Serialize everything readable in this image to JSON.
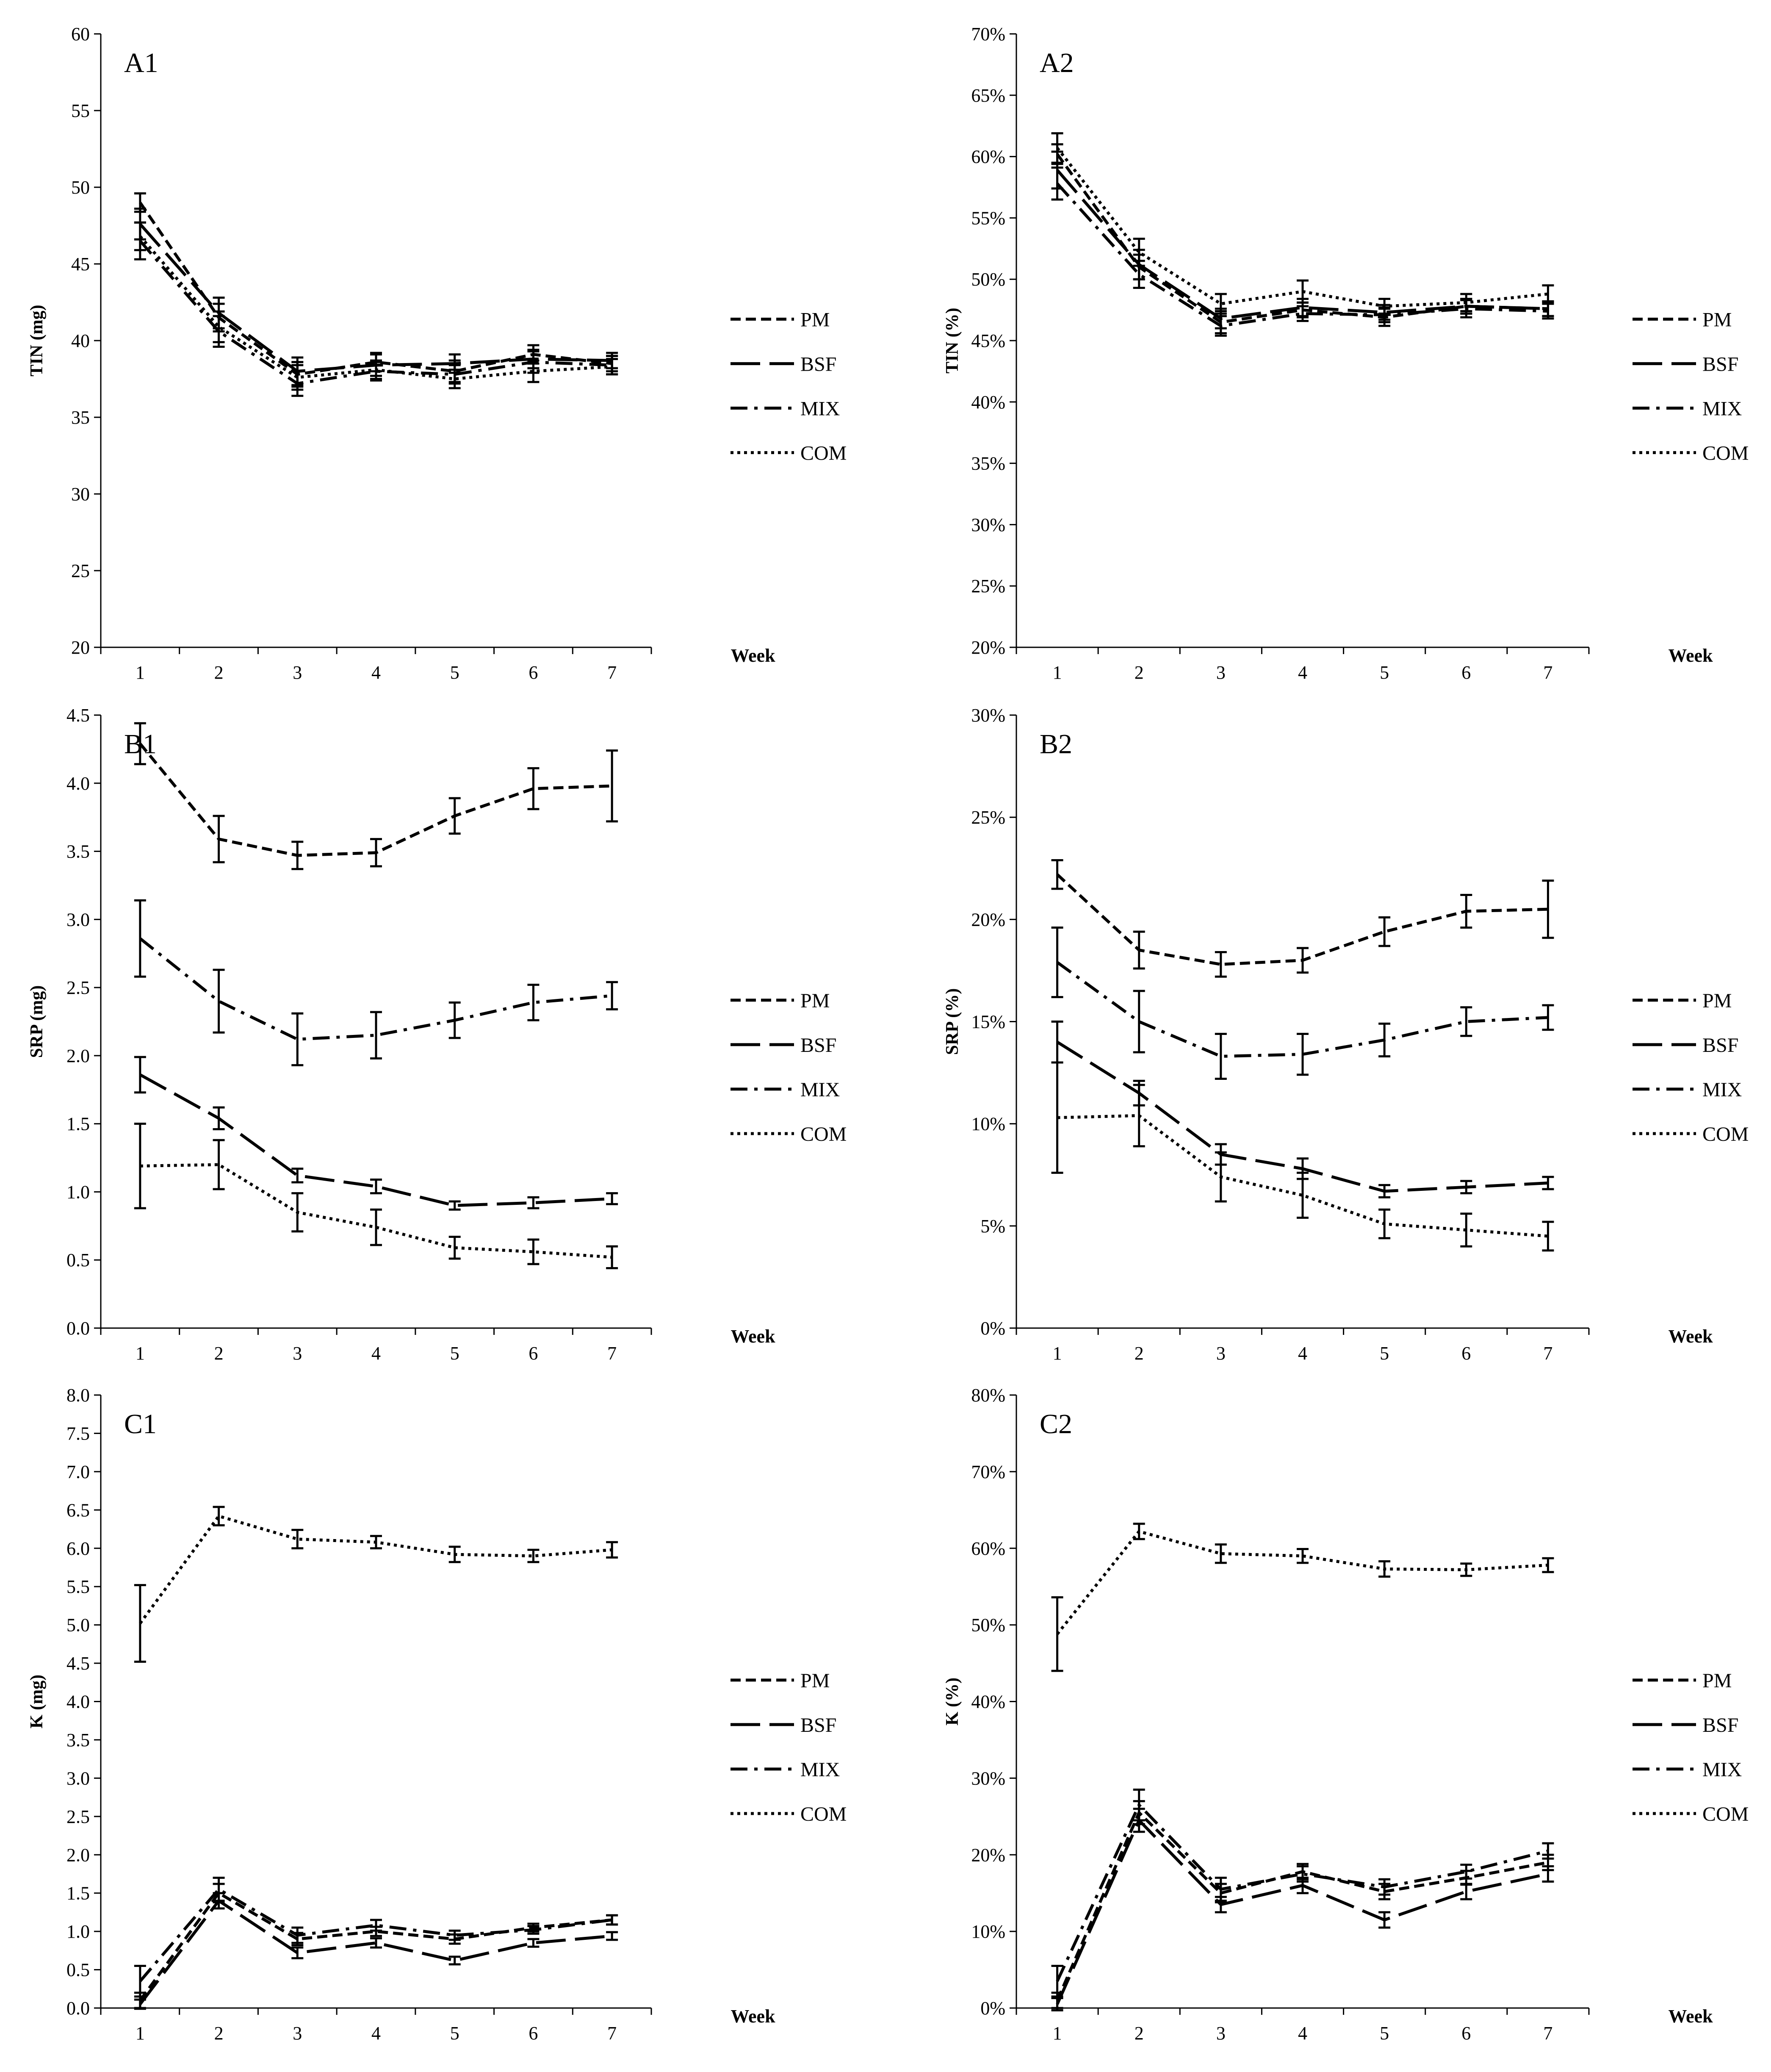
{
  "chart_data": [
    {
      "panel": "A1",
      "type": "line",
      "ylabel": "TIN (mg)",
      "xlabel": "Week",
      "x": [
        1,
        2,
        3,
        4,
        5,
        6,
        7
      ],
      "ylim": [
        20,
        60
      ],
      "yticks": [
        "20",
        "25",
        "30",
        "35",
        "40",
        "45",
        "50",
        "55",
        "60"
      ],
      "series": [
        {
          "name": "PM",
          "values": [
            49.0,
            41.5,
            37.8,
            38.6,
            38.0,
            39.1,
            38.5
          ],
          "errors": [
            0.6,
            0.9,
            0.8,
            0.6,
            0.7,
            0.6,
            0.5
          ]
        },
        {
          "name": "BSF",
          "values": [
            47.6,
            41.8,
            38.0,
            38.4,
            38.5,
            38.8,
            38.7
          ],
          "errors": [
            1.0,
            1.0,
            0.9,
            0.7,
            0.6,
            0.6,
            0.5
          ]
        },
        {
          "name": "MIX",
          "values": [
            46.5,
            40.6,
            37.2,
            38.0,
            37.8,
            38.6,
            38.4
          ],
          "errors": [
            1.2,
            1.0,
            0.8,
            0.6,
            0.6,
            0.7,
            0.6
          ]
        },
        {
          "name": "COM",
          "values": [
            46.8,
            40.9,
            37.6,
            38.1,
            37.5,
            38.0,
            38.3
          ],
          "errors": [
            0.9,
            1.0,
            0.8,
            0.6,
            0.6,
            0.7,
            0.5
          ]
        }
      ]
    },
    {
      "panel": "A2",
      "type": "line",
      "ylabel": "TIN (%)",
      "xlabel": "Week",
      "x": [
        1,
        2,
        3,
        4,
        5,
        6,
        7
      ],
      "ylim": [
        20,
        70
      ],
      "yticks": [
        "20%",
        "25%",
        "30%",
        "35%",
        "40%",
        "45%",
        "50%",
        "55%",
        "60%",
        "65%",
        "70%"
      ],
      "series": [
        {
          "name": "PM",
          "values": [
            60.2,
            51.0,
            46.5,
            47.5,
            46.9,
            47.8,
            47.6
          ],
          "errors": [
            0.8,
            1.0,
            0.9,
            0.6,
            0.7,
            0.6,
            0.6
          ]
        },
        {
          "name": "BSF",
          "values": [
            58.9,
            51.2,
            46.8,
            47.7,
            47.3,
            47.8,
            47.6
          ],
          "errors": [
            1.5,
            1.2,
            0.8,
            0.7,
            0.6,
            0.6,
            0.6
          ]
        },
        {
          "name": "MIX",
          "values": [
            57.8,
            50.4,
            46.2,
            47.2,
            47.1,
            47.6,
            47.4
          ],
          "errors": [
            1.3,
            1.1,
            0.8,
            0.6,
            0.6,
            0.7,
            0.6
          ]
        },
        {
          "name": "COM",
          "values": [
            60.7,
            52.2,
            48.0,
            49.0,
            47.8,
            48.1,
            48.8
          ],
          "errors": [
            1.2,
            1.1,
            0.8,
            0.9,
            0.6,
            0.7,
            0.7
          ]
        }
      ]
    },
    {
      "panel": "B1",
      "type": "line",
      "ylabel": "SRP (mg)",
      "xlabel": "Week",
      "x": [
        1,
        2,
        3,
        4,
        5,
        6,
        7
      ],
      "ylim": [
        0,
        4.5
      ],
      "yticks": [
        "0.0",
        "0.5",
        "1.0",
        "1.5",
        "2.0",
        "2.5",
        "3.0",
        "3.5",
        "4.0",
        "4.5"
      ],
      "series": [
        {
          "name": "PM",
          "values": [
            4.29,
            3.59,
            3.47,
            3.49,
            3.76,
            3.96,
            3.98
          ],
          "errors": [
            0.15,
            0.17,
            0.1,
            0.1,
            0.13,
            0.15,
            0.26
          ]
        },
        {
          "name": "BSF",
          "values": [
            1.86,
            1.54,
            1.12,
            1.04,
            0.9,
            0.92,
            0.95
          ],
          "errors": [
            0.13,
            0.08,
            0.05,
            0.05,
            0.03,
            0.04,
            0.04
          ]
        },
        {
          "name": "MIX",
          "values": [
            2.86,
            2.4,
            2.12,
            2.15,
            2.26,
            2.39,
            2.44
          ],
          "errors": [
            0.28,
            0.23,
            0.19,
            0.17,
            0.13,
            0.13,
            0.1
          ]
        },
        {
          "name": "COM",
          "values": [
            1.19,
            1.2,
            0.85,
            0.74,
            0.59,
            0.56,
            0.52
          ],
          "errors": [
            0.31,
            0.18,
            0.14,
            0.13,
            0.08,
            0.09,
            0.08
          ]
        }
      ]
    },
    {
      "panel": "B2",
      "type": "line",
      "ylabel": "SRP (%)",
      "xlabel": "Week",
      "x": [
        1,
        2,
        3,
        4,
        5,
        6,
        7
      ],
      "ylim": [
        0,
        30
      ],
      "yticks": [
        "0%",
        "5%",
        "10%",
        "15%",
        "20%",
        "25%",
        "30%"
      ],
      "series": [
        {
          "name": "PM",
          "values": [
            22.2,
            18.5,
            17.8,
            18.0,
            19.4,
            20.4,
            20.5
          ],
          "errors": [
            0.7,
            0.9,
            0.6,
            0.6,
            0.7,
            0.8,
            1.4
          ]
        },
        {
          "name": "BSF",
          "values": [
            14.0,
            11.5,
            8.5,
            7.8,
            6.7,
            6.9,
            7.1
          ],
          "errors": [
            1.0,
            0.6,
            0.5,
            0.5,
            0.3,
            0.3,
            0.3
          ]
        },
        {
          "name": "MIX",
          "values": [
            17.9,
            15.0,
            13.3,
            13.4,
            14.1,
            15.0,
            15.2
          ],
          "errors": [
            1.7,
            1.5,
            1.1,
            1.0,
            0.8,
            0.7,
            0.6
          ]
        },
        {
          "name": "COM",
          "values": [
            10.3,
            10.4,
            7.4,
            6.5,
            5.1,
            4.8,
            4.5
          ],
          "errors": [
            2.7,
            1.5,
            1.2,
            1.1,
            0.7,
            0.8,
            0.7
          ]
        }
      ]
    },
    {
      "panel": "C1",
      "type": "line",
      "ylabel": "K (mg)",
      "xlabel": "Week",
      "x": [
        1,
        2,
        3,
        4,
        5,
        6,
        7
      ],
      "ylim": [
        0,
        8
      ],
      "yticks": [
        "0.0",
        "0.5",
        "1.0",
        "1.5",
        "2.0",
        "2.5",
        "3.0",
        "3.5",
        "4.0",
        "4.5",
        "5.0",
        "5.5",
        "6.0",
        "6.5",
        "7.0",
        "7.5",
        "8.0"
      ],
      "series": [
        {
          "name": "PM",
          "values": [
            0.1,
            1.5,
            0.9,
            1.0,
            0.9,
            1.05,
            1.15
          ],
          "errors": [
            0.1,
            0.12,
            0.08,
            0.06,
            0.06,
            0.05,
            0.06
          ]
        },
        {
          "name": "BSF",
          "values": [
            0.05,
            1.4,
            0.72,
            0.85,
            0.62,
            0.85,
            0.94
          ],
          "errors": [
            0.06,
            0.1,
            0.07,
            0.06,
            0.05,
            0.05,
            0.05
          ]
        },
        {
          "name": "MIX",
          "values": [
            0.35,
            1.55,
            0.95,
            1.08,
            0.95,
            1.02,
            1.15
          ],
          "errors": [
            0.2,
            0.15,
            0.1,
            0.07,
            0.06,
            0.05,
            0.06
          ]
        },
        {
          "name": "COM",
          "values": [
            5.02,
            6.42,
            6.12,
            6.08,
            5.92,
            5.9,
            5.98
          ],
          "errors": [
            0.5,
            0.12,
            0.12,
            0.08,
            0.1,
            0.08,
            0.1
          ]
        }
      ]
    },
    {
      "panel": "C2",
      "type": "line",
      "ylabel": "K (%)",
      "xlabel": "Week",
      "x": [
        1,
        2,
        3,
        4,
        5,
        6,
        7
      ],
      "ylim": [
        0,
        80
      ],
      "yticks": [
        "0%",
        "10%",
        "20%",
        "30%",
        "40%",
        "50%",
        "60%",
        "70%",
        "80%"
      ],
      "series": [
        {
          "name": "PM",
          "values": [
            1.0,
            25.5,
            15.0,
            17.8,
            15.2,
            17.0,
            19.0
          ],
          "errors": [
            1.0,
            1.5,
            1.2,
            1.0,
            1.0,
            0.9,
            1.0
          ]
        },
        {
          "name": "BSF",
          "values": [
            0.5,
            24.5,
            13.5,
            16.0,
            11.5,
            15.2,
            17.5
          ],
          "errors": [
            0.8,
            1.5,
            1.0,
            1.0,
            1.0,
            1.0,
            1.0
          ]
        },
        {
          "name": "MIX",
          "values": [
            3.5,
            26.5,
            15.5,
            17.5,
            15.8,
            17.8,
            20.5
          ],
          "errors": [
            2.0,
            2.0,
            1.5,
            1.0,
            1.0,
            0.9,
            1.0
          ]
        },
        {
          "name": "COM",
          "values": [
            48.8,
            62.2,
            59.3,
            59.0,
            57.3,
            57.2,
            57.8
          ],
          "errors": [
            4.8,
            1.0,
            1.2,
            0.9,
            1.0,
            0.8,
            0.9
          ]
        }
      ]
    }
  ],
  "legend": {
    "items": [
      "PM",
      "BSF",
      "MIX",
      "COM"
    ]
  }
}
